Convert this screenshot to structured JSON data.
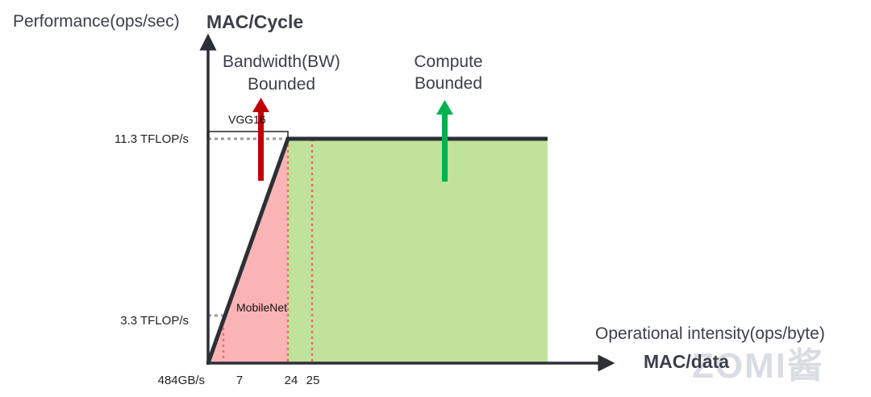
{
  "y_axis_title": "Performance(ops/sec)",
  "y_axis_unit": "MAC/Cycle",
  "x_axis_title": "Operational intensity(ops/byte)",
  "x_axis_unit": "MAC/data",
  "regions": {
    "bandwidth_line1": "Bandwidth(BW)",
    "bandwidth_line2": "Bounded",
    "compute_line1": "Compute",
    "compute_line2": "Bounded"
  },
  "y_ticks": {
    "peak": "11.3 TFLOP/s",
    "mobilenet": "3.3 TFLOP/s"
  },
  "x_ticks": {
    "origin": "484GB/s",
    "mobilenet": "7",
    "ridge": "24",
    "vgg16": "25"
  },
  "annotations": {
    "vgg16": "VGG16",
    "mobilenet": "MobileNet"
  },
  "watermark": "ZOMI酱",
  "colors": {
    "bandwidth_fill": "#fbb4b5",
    "compute_fill": "#c0e29a",
    "roofline": "#2c2f36",
    "bandwidth_arrow": "#c00000",
    "compute_arrow": "#00b050",
    "dotted_red": "#f06a6a",
    "dotted_gray": "#9a9a9a"
  }
}
